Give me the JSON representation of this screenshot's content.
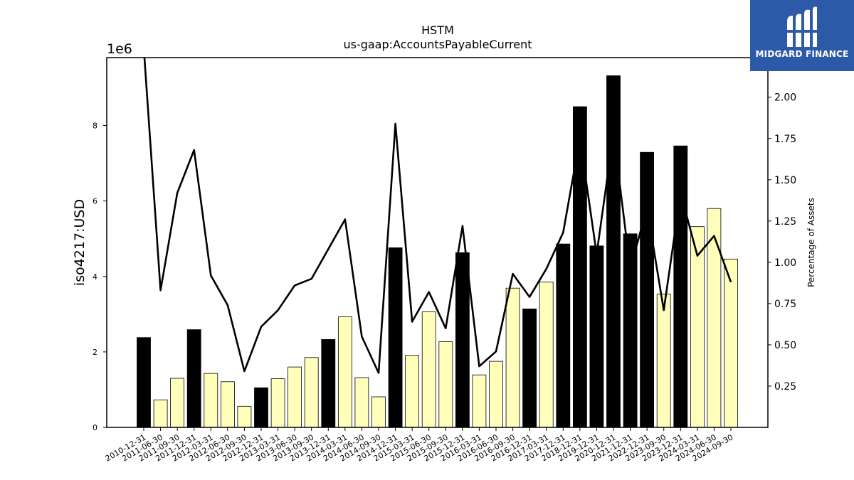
{
  "logo": {
    "name": "MIDGARD FINANCE",
    "mark": "midgard-m-logo-icon",
    "background": "#2c5aa8"
  },
  "chart_data": {
    "type": "bar",
    "title": "HSTM",
    "subtitle": "us-gaap:AccountsPayableCurrent",
    "ylabel": "iso4217:USD",
    "y_scale_label": "1e6",
    "y2label": "Percentage of Assets",
    "ylim": [
      0,
      9800000
    ],
    "y2lim": [
      0,
      2.24
    ],
    "yticks": [
      0,
      2000000,
      4000000,
      6000000,
      8000000
    ],
    "yticklabels": [
      "0",
      "2",
      "4",
      "6",
      "8"
    ],
    "y2ticks": [
      0.25,
      0.5,
      0.75,
      1.0,
      1.25,
      1.5,
      1.75,
      2.0
    ],
    "y2ticklabels": [
      "0.25",
      "0.50",
      "0.75",
      "1.00",
      "1.25",
      "1.50",
      "1.75",
      "2.00"
    ],
    "grid": false,
    "categories": [
      "2010-12-31",
      "2011-06-30",
      "2011-09-30",
      "2011-12-31",
      "2012-03-31",
      "2012-06-30",
      "2012-09-30",
      "2012-12-31",
      "2013-03-31",
      "2013-06-30",
      "2013-09-30",
      "2013-12-31",
      "2014-03-31",
      "2014-06-30",
      "2014-09-30",
      "2014-12-31",
      "2015-03-31",
      "2015-06-30",
      "2015-09-30",
      "2015-12-31",
      "2016-03-31",
      "2016-06-30",
      "2016-09-30",
      "2016-12-31",
      "2017-03-31",
      "2017-12-31",
      "2018-12-31",
      "2019-12-31",
      "2020-12-31",
      "2021-12-31",
      "2022-12-31",
      "2023-09-30",
      "2023-12-31",
      "2024-03-31",
      "2024-06-30",
      "2024-09-30"
    ],
    "series": [
      {
        "kind": "bar",
        "values": [
          2380000,
          730000,
          1300000,
          2590000,
          1430000,
          1210000,
          560000,
          1050000,
          1290000,
          1600000,
          1850000,
          2330000,
          2930000,
          1320000,
          810000,
          4760000,
          1910000,
          3060000,
          2270000,
          4630000,
          1390000,
          1750000,
          3690000,
          3140000,
          3850000,
          4860000,
          8500000,
          4810000,
          9320000,
          5130000,
          7290000,
          3530000,
          7460000,
          5320000,
          5800000,
          4460000
        ],
        "annual": [
          true,
          false,
          false,
          true,
          false,
          false,
          false,
          true,
          false,
          false,
          false,
          true,
          false,
          false,
          false,
          true,
          false,
          false,
          false,
          true,
          false,
          false,
          false,
          true,
          false,
          true,
          true,
          true,
          true,
          true,
          true,
          false,
          true,
          false,
          false,
          false
        ],
        "colors": {
          "annual": "#000000",
          "quarterly": "#ffffbb"
        }
      },
      {
        "kind": "line",
        "axis": "right",
        "color": "#000000",
        "values": [
          2.3,
          0.83,
          1.42,
          1.68,
          0.92,
          0.74,
          0.34,
          0.61,
          0.71,
          0.86,
          0.9,
          1.08,
          1.26,
          0.55,
          0.33,
          1.84,
          0.64,
          0.82,
          0.6,
          1.22,
          0.37,
          0.46,
          0.93,
          0.79,
          0.96,
          1.18,
          1.75,
          1.05,
          1.78,
          0.96,
          1.33,
          0.71,
          1.42,
          1.04,
          1.16,
          0.88
        ]
      }
    ]
  }
}
